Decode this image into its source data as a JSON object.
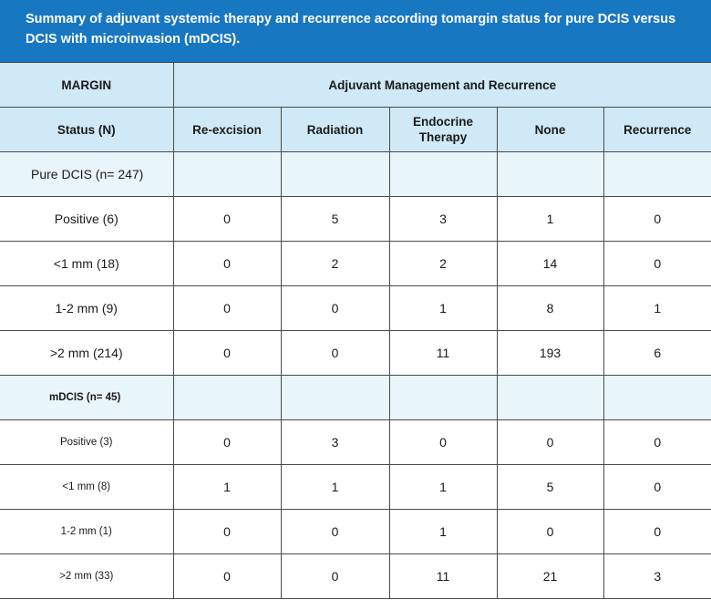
{
  "title": "Summary of adjuvant systemic therapy and recurrence according tomargin status for pure DCIS versus DCIS with microinvasion (mDCIS).",
  "header": {
    "margin": "MARGIN",
    "management": "Adjuvant Management and Recurrence",
    "columns": [
      "Status (N)",
      "Re-excision",
      "Radiation",
      "Endocrine Therapy",
      "None",
      "Recurrence"
    ]
  },
  "groups": [
    {
      "label": "Pure DCIS (n= 247)",
      "rows": [
        {
          "status": "Positive (6)",
          "values": [
            "0",
            "5",
            "3",
            "1",
            "0"
          ]
        },
        {
          "status": "<1 mm (18)",
          "values": [
            "0",
            "2",
            "2",
            "14",
            "0"
          ]
        },
        {
          "status": "1-2 mm (9)",
          "values": [
            "0",
            "0",
            "1",
            "8",
            "1"
          ]
        },
        {
          "status": ">2 mm (214)",
          "values": [
            "0",
            "0",
            "11",
            "193",
            "6"
          ]
        }
      ]
    },
    {
      "label": "mDCIS (n= 45)",
      "rows": [
        {
          "status": "Positive (3)",
          "values": [
            "0",
            "3",
            "0",
            "0",
            "0"
          ]
        },
        {
          "status": "<1 mm (8)",
          "values": [
            "1",
            "1",
            "1",
            "5",
            "0"
          ]
        },
        {
          "status": "1-2 mm (1)",
          "values": [
            "0",
            "0",
            "1",
            "0",
            "0"
          ]
        },
        {
          "status": ">2 mm (33)",
          "values": [
            "0",
            "0",
            "11",
            "21",
            "3"
          ]
        }
      ]
    }
  ]
}
